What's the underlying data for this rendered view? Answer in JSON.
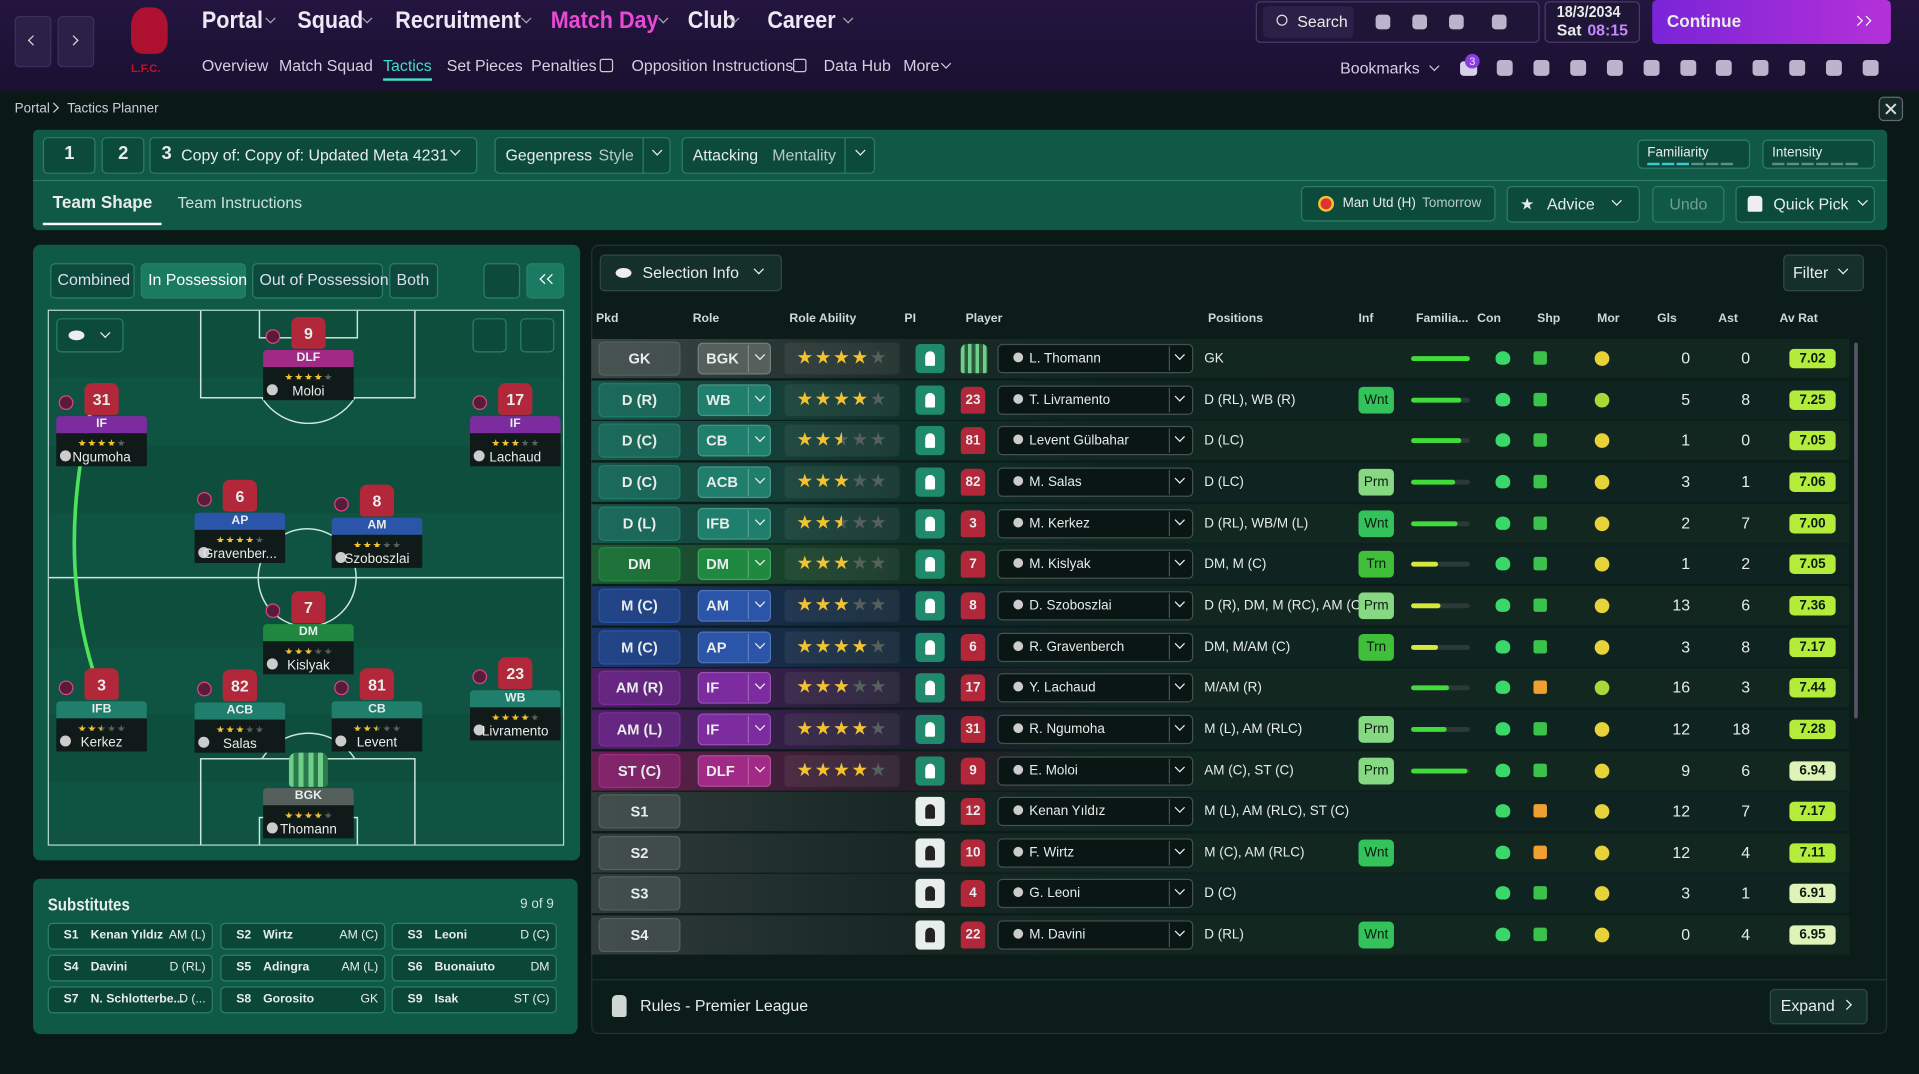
{
  "nav": {
    "menus": [
      "Portal",
      "Squad",
      "Recruitment",
      "Match Day",
      "Club",
      "Career"
    ],
    "submenus": [
      "Overview",
      "Match Squad",
      "Tactics",
      "Set Pieces",
      "Penalties",
      "Opposition Instructions",
      "Data Hub",
      "More"
    ],
    "club": "L.F.C.",
    "search": "Search",
    "date": "18/3/2034",
    "day": "Sat",
    "time": "08:15",
    "continue": "Continue",
    "bookmarks": "Bookmarks",
    "notifications": "3"
  },
  "breadcrumb": [
    "Portal",
    "Tactics Planner"
  ],
  "tactic": {
    "slots": [
      "1",
      "2",
      "3"
    ],
    "name": "Copy of: Copy of: Updated Meta 4231",
    "style": "Gegenpress",
    "style_label": "Style",
    "mentality": "Attacking",
    "mentality_label": "Mentality",
    "meters": [
      "Familiarity",
      "Intensity"
    ]
  },
  "tabs": [
    "Team Shape",
    "Team Instructions"
  ],
  "fixture": {
    "opponent": "Man Utd (H)",
    "when": "Tomorrow"
  },
  "actions": [
    "Advice",
    "Undo",
    "Quick Pick"
  ],
  "pitch": {
    "views": [
      "Combined",
      "In Possession",
      "Out of Possession",
      "Both"
    ],
    "players": [
      {
        "number": "9",
        "role": "DLF",
        "name": "Moloi",
        "stars": 4
      },
      {
        "number": "31",
        "role": "IF",
        "name": "Ngumoha",
        "stars": 4
      },
      {
        "number": "17",
        "role": "IF",
        "name": "Lachaud",
        "stars": 3
      },
      {
        "number": "6",
        "role": "AP",
        "name": "Gravenber...",
        "stars": 4
      },
      {
        "number": "8",
        "role": "AM",
        "name": "Szoboszlai",
        "stars": 3
      },
      {
        "number": "7",
        "role": "DM",
        "name": "Kislyak",
        "stars": 3
      },
      {
        "number": "3",
        "role": "IFB",
        "name": "Kerkez",
        "stars": 2.5
      },
      {
        "number": "82",
        "role": "ACB",
        "name": "Salas",
        "stars": 3
      },
      {
        "number": "81",
        "role": "CB",
        "name": "Levent",
        "stars": 2.5
      },
      {
        "number": "23",
        "role": "WB",
        "name": "Livramento",
        "stars": 4
      },
      {
        "number": null,
        "role": "BGK",
        "name": "Thomann",
        "stars": 4
      }
    ]
  },
  "substitutes": {
    "title": "Substitutes",
    "count": "9 of 9",
    "list": [
      {
        "slot": "S1",
        "name": "Kenan Yıldız",
        "position": "AM (L)"
      },
      {
        "slot": "S2",
        "name": "Wirtz",
        "position": "AM (C)"
      },
      {
        "slot": "S3",
        "name": "Leoni",
        "position": "D (C)"
      },
      {
        "slot": "S4",
        "name": "Davini",
        "position": "D (RL)"
      },
      {
        "slot": "S5",
        "name": "Adingra",
        "position": "AM (L)"
      },
      {
        "slot": "S6",
        "name": "Buonaiuto",
        "position": "DM"
      },
      {
        "slot": "S7",
        "name": "N. Schlotterbe...",
        "position": "D (..."
      },
      {
        "slot": "S8",
        "name": "Gorosito",
        "position": "GK"
      },
      {
        "slot": "S9",
        "name": "Isak",
        "position": "ST (C)"
      }
    ]
  },
  "selection": {
    "title": "Selection Info",
    "filter": "Filter",
    "columns": [
      "Pkd",
      "Role",
      "Role Ability",
      "PI",
      "Player",
      "Positions",
      "Inf",
      "Familia...",
      "Con",
      "Shp",
      "Mor",
      "Gls",
      "Ast",
      "Av Rat"
    ],
    "rows": [
      {
        "pkd": "GK",
        "role": "BGK",
        "stars": 4,
        "number": null,
        "player": "L. Thomann",
        "positions": "GK",
        "inf": null,
        "familiarity": 1.0,
        "gls": 0,
        "ast": 0,
        "rating": "7.02"
      },
      {
        "pkd": "D (R)",
        "role": "WB",
        "stars": 4,
        "number": "23",
        "player": "T. Livramento",
        "positions": "D (RL), WB (R)",
        "inf": "Wnt",
        "familiarity": 0.85,
        "gls": 5,
        "ast": 8,
        "rating": "7.25"
      },
      {
        "pkd": "D (C)",
        "role": "CB",
        "stars": 2.5,
        "number": "81",
        "player": "Levent Gülbahar",
        "positions": "D (LC)",
        "inf": null,
        "familiarity": 0.85,
        "gls": 1,
        "ast": 0,
        "rating": "7.05"
      },
      {
        "pkd": "D (C)",
        "role": "ACB",
        "stars": 3,
        "number": "82",
        "player": "M. Salas",
        "positions": "D (LC)",
        "inf": "Prm",
        "familiarity": 0.75,
        "gls": 3,
        "ast": 1,
        "rating": "7.06"
      },
      {
        "pkd": "D (L)",
        "role": "IFB",
        "stars": 2.5,
        "number": "3",
        "player": "M. Kerkez",
        "positions": "D (RL), WB/M (L)",
        "inf": "Wnt",
        "familiarity": 0.8,
        "gls": 2,
        "ast": 7,
        "rating": "7.00"
      },
      {
        "pkd": "DM",
        "role": "DM",
        "stars": 3,
        "number": "7",
        "player": "M. Kislyak",
        "positions": "DM, M (C)",
        "inf": "Trn",
        "familiarity": 0.45,
        "gls": 1,
        "ast": 2,
        "rating": "7.05"
      },
      {
        "pkd": "M (C)",
        "role": "AM",
        "stars": 3,
        "number": "8",
        "player": "D. Szoboszlai",
        "positions": "D (R), DM, M (RC), AM (C)",
        "inf": "Prm",
        "familiarity": 0.5,
        "gls": 13,
        "ast": 6,
        "rating": "7.36"
      },
      {
        "pkd": "M (C)",
        "role": "AP",
        "stars": 4,
        "number": "6",
        "player": "R. Gravenberch",
        "positions": "DM, M/AM (C)",
        "inf": "Trn",
        "familiarity": 0.45,
        "gls": 3,
        "ast": 8,
        "rating": "7.17"
      },
      {
        "pkd": "AM (R)",
        "role": "IF",
        "stars": 3,
        "number": "17",
        "player": "Y. Lachaud",
        "positions": "M/AM (R)",
        "inf": null,
        "familiarity": 0.65,
        "gls": 16,
        "ast": 3,
        "rating": "7.44"
      },
      {
        "pkd": "AM (L)",
        "role": "IF",
        "stars": 4,
        "number": "31",
        "player": "R. Ngumoha",
        "positions": "M (L), AM (RLC)",
        "inf": "Prm",
        "familiarity": 0.6,
        "gls": 12,
        "ast": 18,
        "rating": "7.28"
      },
      {
        "pkd": "ST (C)",
        "role": "DLF",
        "stars": 4,
        "number": "9",
        "player": "E. Moloi",
        "positions": "AM (C), ST (C)",
        "inf": "Prm",
        "familiarity": 0.95,
        "gls": 9,
        "ast": 6,
        "rating": "6.94"
      },
      {
        "pkd": "S1",
        "role": null,
        "stars": null,
        "number": "12",
        "player": "Kenan Yıldız",
        "positions": "M (L), AM (RLC), ST (C)",
        "inf": null,
        "familiarity": null,
        "gls": 12,
        "ast": 7,
        "rating": "7.17"
      },
      {
        "pkd": "S2",
        "role": null,
        "stars": null,
        "number": "10",
        "player": "F. Wirtz",
        "positions": "M (C), AM (RLC)",
        "inf": "Wnt",
        "familiarity": null,
        "gls": 12,
        "ast": 4,
        "rating": "7.11"
      },
      {
        "pkd": "S3",
        "role": null,
        "stars": null,
        "number": "4",
        "player": "G. Leoni",
        "positions": "D (C)",
        "inf": null,
        "familiarity": null,
        "gls": 3,
        "ast": 1,
        "rating": "6.91"
      },
      {
        "pkd": "S4",
        "role": null,
        "stars": null,
        "number": "22",
        "player": "M. Davini",
        "positions": "D (RL)",
        "inf": "Wnt",
        "familiarity": null,
        "gls": 0,
        "ast": 4,
        "rating": "6.95"
      }
    ]
  },
  "footer": {
    "rules": "Rules - Premier League",
    "expand": "Expand"
  }
}
